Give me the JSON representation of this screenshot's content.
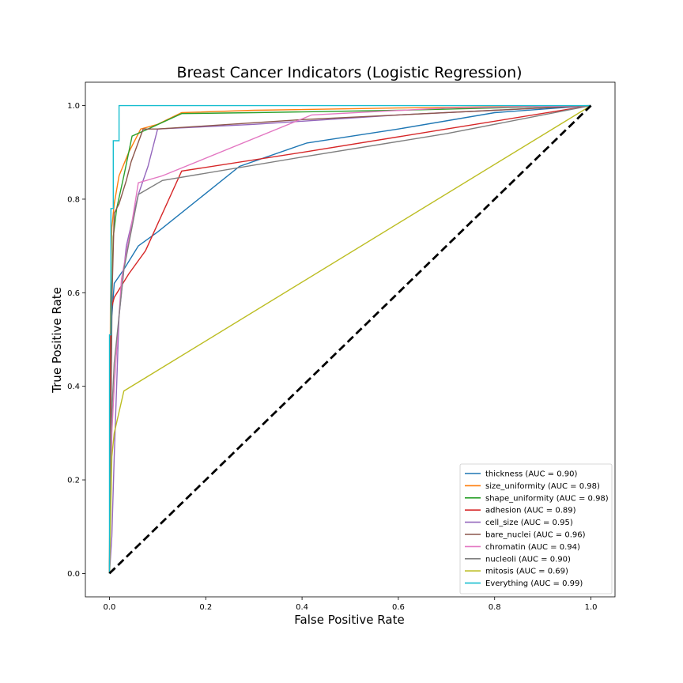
{
  "chart_data": {
    "type": "line",
    "title": "Breast Cancer Indicators (Logistic Regression)",
    "xlabel": "False Positive Rate",
    "ylabel": "True Positive Rate",
    "xlim": [
      -0.05,
      1.05
    ],
    "ylim": [
      -0.05,
      1.05
    ],
    "xticks": [
      "0.0",
      "0.2",
      "0.4",
      "0.6",
      "0.8",
      "1.0"
    ],
    "yticks": [
      "0.0",
      "0.2",
      "0.4",
      "0.6",
      "0.8",
      "1.0"
    ],
    "grid": false,
    "legend_position": "lower-right",
    "diagonal": {
      "x": [
        0,
        1
      ],
      "y": [
        0,
        1
      ],
      "color": "#000000",
      "style": "dashed"
    },
    "series": [
      {
        "name": "thickness (AUC = 0.90)",
        "color": "#1f77b4",
        "x": [
          0,
          0.005,
          0.01,
          0.03,
          0.06,
          0.1,
          0.27,
          0.41,
          0.6,
          0.8,
          1.0
        ],
        "y": [
          0,
          0.55,
          0.62,
          0.65,
          0.7,
          0.73,
          0.87,
          0.92,
          0.95,
          0.985,
          1.0
        ]
      },
      {
        "name": "size_uniformity (AUC = 0.98)",
        "color": "#ff7f0e",
        "x": [
          0,
          0.002,
          0.005,
          0.01,
          0.02,
          0.04,
          0.065,
          0.1,
          0.15,
          0.3,
          0.6,
          1.0
        ],
        "y": [
          0,
          0.58,
          0.74,
          0.79,
          0.85,
          0.9,
          0.95,
          0.96,
          0.985,
          0.99,
          0.995,
          1.0
        ]
      },
      {
        "name": "shape_uniformity (AUC = 0.98)",
        "color": "#2ca02c",
        "x": [
          0,
          0.003,
          0.008,
          0.015,
          0.03,
          0.047,
          0.08,
          0.15,
          0.3,
          0.6,
          1.0
        ],
        "y": [
          0,
          0.52,
          0.72,
          0.78,
          0.85,
          0.935,
          0.95,
          0.983,
          0.985,
          0.99,
          1.0
        ]
      },
      {
        "name": "adhesion (AUC = 0.89)",
        "color": "#d62728",
        "x": [
          0,
          0.002,
          0.005,
          0.01,
          0.04,
          0.075,
          0.15,
          0.4,
          0.7,
          1.0
        ],
        "y": [
          0,
          0.5,
          0.57,
          0.59,
          0.64,
          0.69,
          0.86,
          0.9,
          0.95,
          1.0
        ]
      },
      {
        "name": "cell_size (AUC = 0.95)",
        "color": "#9467bd",
        "x": [
          0,
          0.005,
          0.01,
          0.02,
          0.035,
          0.06,
          0.08,
          0.1,
          0.3,
          0.6,
          1.0
        ],
        "y": [
          0,
          0.08,
          0.25,
          0.55,
          0.7,
          0.81,
          0.87,
          0.95,
          0.96,
          0.98,
          1.0
        ]
      },
      {
        "name": "bare_nuclei (AUC = 0.96)",
        "color": "#8c564b",
        "x": [
          0,
          0.005,
          0.01,
          0.02,
          0.035,
          0.045,
          0.07,
          0.1,
          0.4,
          1.0
        ],
        "y": [
          0,
          0.58,
          0.77,
          0.79,
          0.84,
          0.88,
          0.95,
          0.95,
          0.97,
          1.0
        ]
      },
      {
        "name": "chromatin (AUC = 0.94)",
        "color": "#e377c2",
        "x": [
          0,
          0.005,
          0.01,
          0.025,
          0.045,
          0.06,
          0.11,
          0.42,
          0.7,
          1.0
        ],
        "y": [
          0,
          0.3,
          0.4,
          0.63,
          0.74,
          0.835,
          0.85,
          0.98,
          0.995,
          1.0
        ]
      },
      {
        "name": "nucleoli (AUC = 0.90)",
        "color": "#7f7f7f",
        "x": [
          0,
          0.003,
          0.01,
          0.03,
          0.06,
          0.11,
          0.4,
          0.7,
          1.0
        ],
        "y": [
          0,
          0.3,
          0.45,
          0.65,
          0.81,
          0.84,
          0.89,
          0.94,
          1.0
        ]
      },
      {
        "name": "mitosis (AUC = 0.69)",
        "color": "#bcbd22",
        "x": [
          0,
          0.005,
          0.01,
          0.03,
          1.0
        ],
        "y": [
          0,
          0.25,
          0.3,
          0.39,
          1.0
        ]
      },
      {
        "name": "Everything (AUC = 0.99)",
        "color": "#17becf",
        "x": [
          0,
          0,
          0.003,
          0.003,
          0.008,
          0.008,
          0.02,
          0.02,
          1.0
        ],
        "y": [
          0,
          0.51,
          0.51,
          0.78,
          0.78,
          0.925,
          0.925,
          1.0,
          1.0
        ]
      }
    ]
  }
}
